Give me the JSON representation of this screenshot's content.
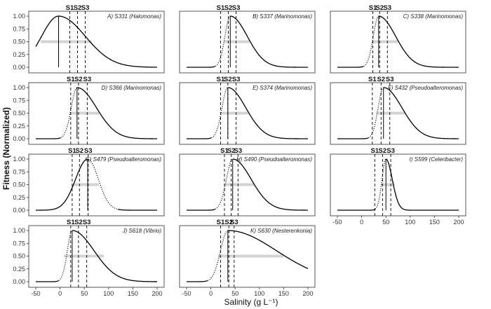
{
  "figure": {
    "xlabel": "Salinity (g L⁻¹)",
    "ylabel": "Fitness (Normalized)"
  },
  "colors": {
    "curve": "#000000",
    "halfmax_bar": "#d3d3d3",
    "panel_border": "#555555",
    "background": "#ffffff"
  },
  "chart_data": [
    {
      "type": "line",
      "title": "A) S331 (Halomonas)",
      "x_range": [
        -50,
        200
      ],
      "ylim": [
        0,
        1
      ],
      "x_ticks": [
        -50,
        0,
        50,
        100,
        150,
        200
      ],
      "y_ticks": [
        0.0,
        0.25,
        0.5,
        0.75,
        1.0
      ],
      "optimum": -3,
      "sigma_left": 35,
      "sigma_right": 55,
      "dotted_left": false,
      "dotted_right": false,
      "lower_bound": -3,
      "salinity_lines": [
        {
          "label": "S1",
          "x": 20
        },
        {
          "label": "S2",
          "x": 36
        },
        {
          "label": "S3",
          "x": 52
        }
      ],
      "halfmax_range": [
        -40,
        65
      ]
    },
    {
      "type": "line",
      "title": "B) S337 (Marinomonas)",
      "x_range": [
        -50,
        200
      ],
      "ylim": [
        0,
        1
      ],
      "x_ticks": [
        -50,
        0,
        50,
        100,
        150,
        200
      ],
      "y_ticks": [
        0.0,
        0.25,
        0.5,
        0.75,
        1.0
      ],
      "optimum": 40,
      "sigma_left": 11,
      "sigma_right": 35,
      "dotted_left": true,
      "dotted_right": false,
      "lower_bound": 40,
      "salinity_lines": [
        {
          "label": "S1",
          "x": 20
        },
        {
          "label": "S2",
          "x": 36
        },
        {
          "label": "S3",
          "x": 52
        }
      ],
      "halfmax_range": [
        27,
        80
      ]
    },
    {
      "type": "line",
      "title": "C) S338 (Marinomonas)",
      "x_range": [
        -50,
        200
      ],
      "ylim": [
        0,
        1
      ],
      "x_ticks": [
        -50,
        0,
        50,
        100,
        150,
        200
      ],
      "y_ticks": [
        0.0,
        0.25,
        0.5,
        0.75,
        1.0
      ],
      "optimum": 35,
      "sigma_left": 11,
      "sigma_right": 35,
      "dotted_left": true,
      "dotted_right": false,
      "lower_bound": 35,
      "salinity_lines": [
        {
          "label": "S1",
          "x": 23
        },
        {
          "label": "S2",
          "x": 37
        },
        {
          "label": "S3",
          "x": 53
        }
      ],
      "halfmax_range": [
        22,
        75
      ]
    },
    {
      "type": "line",
      "title": "D) S366 (Marinomonas)",
      "x_range": [
        -50,
        200
      ],
      "ylim": [
        0,
        1
      ],
      "x_ticks": [
        -50,
        0,
        50,
        100,
        150,
        200
      ],
      "y_ticks": [
        0.0,
        0.25,
        0.5,
        0.75,
        1.0
      ],
      "optimum": 35,
      "sigma_left": 12,
      "sigma_right": 40,
      "dotted_left": true,
      "dotted_right": false,
      "lower_bound": 35,
      "salinity_lines": [
        {
          "label": "S1",
          "x": 22
        },
        {
          "label": "S2",
          "x": 38
        },
        {
          "label": "S3",
          "x": 56
        }
      ],
      "halfmax_range": [
        20,
        80
      ]
    },
    {
      "type": "line",
      "title": "E) S374 (Marinomonas)",
      "x_range": [
        -50,
        200
      ],
      "ylim": [
        0,
        1
      ],
      "x_ticks": [
        -50,
        0,
        50,
        100,
        150,
        200
      ],
      "y_ticks": [
        0.0,
        0.25,
        0.5,
        0.75,
        1.0
      ],
      "optimum": 35,
      "sigma_left": 12,
      "sigma_right": 37,
      "dotted_left": true,
      "dotted_right": false,
      "lower_bound": 35,
      "salinity_lines": [
        {
          "label": "S1",
          "x": 20
        },
        {
          "label": "S2",
          "x": 35
        },
        {
          "label": "S3",
          "x": 52
        }
      ],
      "halfmax_range": [
        21,
        78
      ]
    },
    {
      "type": "line",
      "title": "F) S432 (Pseudoalteromonas)",
      "x_range": [
        -50,
        200
      ],
      "ylim": [
        0,
        1
      ],
      "x_ticks": [
        -50,
        0,
        50,
        100,
        150,
        200
      ],
      "y_ticks": [
        0.0,
        0.25,
        0.5,
        0.75,
        1.0
      ],
      "optimum": 45,
      "sigma_left": 11,
      "sigma_right": 38,
      "dotted_left": true,
      "dotted_right": false,
      "lower_bound": 45,
      "salinity_lines": [
        {
          "label": "S1",
          "x": 22
        },
        {
          "label": "S2",
          "x": 40
        },
        {
          "label": "S3",
          "x": 58
        }
      ],
      "halfmax_range": [
        30,
        90
      ]
    },
    {
      "type": "line",
      "title": "G) S479 (Pseudoalteromonas)",
      "x_range": [
        -50,
        200
      ],
      "ylim": [
        0,
        1
      ],
      "x_ticks": [
        -50,
        0,
        50,
        100,
        150,
        200
      ],
      "y_ticks": [
        0.0,
        0.25,
        0.5,
        0.75,
        1.0
      ],
      "optimum": 57,
      "sigma_left": 25,
      "sigma_right": 22,
      "dotted_left": false,
      "dotted_right": true,
      "lower_bound": 57,
      "salinity_lines": [
        {
          "label": "S1",
          "x": 25
        },
        {
          "label": "S2",
          "x": 40
        },
        {
          "label": "S3",
          "x": 58
        }
      ],
      "halfmax_range": [
        28,
        80
      ]
    },
    {
      "type": "line",
      "title": "H) S490 (Pseudoalteromonas)",
      "x_range": [
        -50,
        200
      ],
      "ylim": [
        0,
        1
      ],
      "x_ticks": [
        -50,
        0,
        50,
        100,
        150,
        200
      ],
      "y_ticks": [
        0.0,
        0.25,
        0.5,
        0.75,
        1.0
      ],
      "optimum": 45,
      "sigma_left": 13,
      "sigma_right": 38,
      "dotted_left": true,
      "dotted_right": false,
      "lower_bound": 45,
      "salinity_lines": [
        {
          "label": "S1",
          "x": 28
        },
        {
          "label": "S2",
          "x": 42
        },
        {
          "label": "S3",
          "x": 56
        }
      ],
      "halfmax_range": [
        30,
        90
      ]
    },
    {
      "type": "line",
      "title": "I) S599 (Celeribacter)",
      "x_range": [
        -50,
        200
      ],
      "ylim": [
        0,
        1
      ],
      "x_ticks": [
        -50,
        0,
        50,
        100,
        150,
        200
      ],
      "y_ticks": [
        0.0,
        0.25,
        0.5,
        0.75,
        1.0
      ],
      "optimum": 50,
      "sigma_left": 8,
      "sigma_right": 13,
      "dotted_left": true,
      "dotted_right": false,
      "lower_bound": 50,
      "salinity_lines": [
        {
          "label": "S1",
          "x": 27
        },
        {
          "label": "S2",
          "x": 43
        },
        {
          "label": "S3",
          "x": 60
        }
      ],
      "halfmax_range": [
        40,
        68
      ]
    },
    {
      "type": "line",
      "title": "J) S618 (Vibrio)",
      "x_range": [
        -50,
        200
      ],
      "ylim": [
        0,
        1
      ],
      "x_ticks": [
        -50,
        0,
        50,
        100,
        150,
        200
      ],
      "y_ticks": [
        0.0,
        0.25,
        0.5,
        0.75,
        1.0
      ],
      "optimum": 25,
      "sigma_left": 10,
      "sigma_right": 45,
      "dotted_left": true,
      "dotted_right": false,
      "lower_bound": 25,
      "salinity_lines": [
        {
          "label": "S1",
          "x": 22
        },
        {
          "label": "S2",
          "x": 38
        },
        {
          "label": "S3",
          "x": 55
        }
      ],
      "halfmax_range": [
        8,
        90
      ]
    },
    {
      "type": "line",
      "title": "K) S630 (Nesterenkonia)",
      "x_range": [
        -50,
        200
      ],
      "ylim": [
        0,
        1
      ],
      "x_ticks": [
        -50,
        0,
        50,
        100,
        150,
        200
      ],
      "y_ticks": [
        0.0,
        0.25,
        0.5,
        0.75,
        1.0
      ],
      "optimum": 35,
      "sigma_left": 15,
      "sigma_right": 100,
      "dotted_left": true,
      "dotted_right": false,
      "lower_bound": 35,
      "salinity_lines": [
        {
          "label": "S1",
          "x": 20
        },
        {
          "label": "S2",
          "x": 37
        },
        {
          "label": "S3",
          "x": 48
        }
      ],
      "halfmax_range": [
        15,
        150
      ]
    }
  ]
}
